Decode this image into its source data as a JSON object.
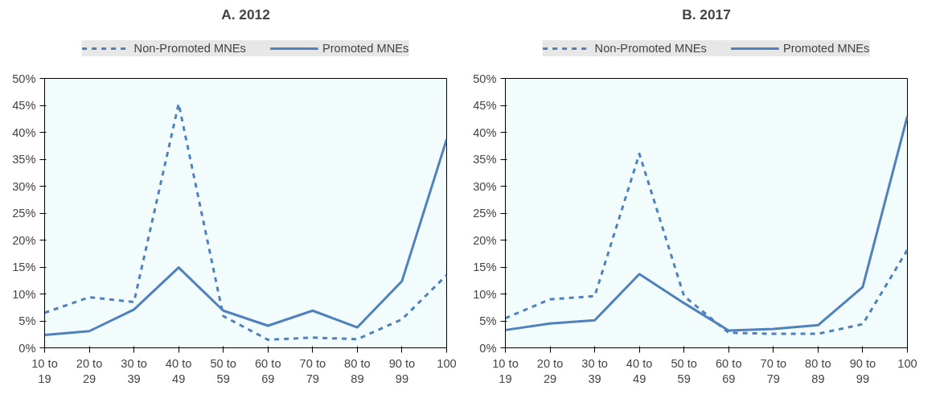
{
  "chart_data": [
    {
      "type": "line",
      "title": "A. 2012",
      "categories": [
        "10 to 19",
        "20 to 29",
        "30 to 39",
        "40 to 49",
        "50 to 59",
        "60 to 69",
        "70 to 79",
        "80 to 89",
        "90 to 99",
        "100"
      ],
      "ylim": [
        0,
        50
      ],
      "yticks": [
        {
          "value": 0,
          "label": "0%"
        },
        {
          "value": 5,
          "label": "5%"
        },
        {
          "value": 10,
          "label": "10%"
        },
        {
          "value": 15,
          "label": "15%"
        },
        {
          "value": 20,
          "label": "20%"
        },
        {
          "value": 25,
          "label": "25%"
        },
        {
          "value": 30,
          "label": "30%"
        },
        {
          "value": 35,
          "label": "35%"
        },
        {
          "value": 40,
          "label": "40%"
        },
        {
          "value": 45,
          "label": "45%"
        },
        {
          "value": 50,
          "label": "50%"
        }
      ],
      "grid": false,
      "legend": "top",
      "marker": "none",
      "series": [
        {
          "name": "Non-Promoted MNEs",
          "color": "#4f81bd",
          "line_style": "dashed",
          "values": [
            6.5,
            9.4,
            8.5,
            45.3,
            5.9,
            1.5,
            1.9,
            1.6,
            5.3,
            13.5
          ]
        },
        {
          "name": "Promoted MNEs",
          "color": "#4f81bd",
          "line_style": "solid",
          "values": [
            2.4,
            3.1,
            7.1,
            14.9,
            6.9,
            4.1,
            6.9,
            3.8,
            12.4,
            38.7
          ]
        }
      ]
    },
    {
      "type": "line",
      "title": "B. 2017",
      "categories": [
        "10 to 19",
        "20 to 29",
        "30 to 39",
        "40 to 49",
        "50 to 59",
        "60 to 69",
        "70 to 79",
        "80 to 89",
        "90 to 99",
        "100"
      ],
      "ylim": [
        0,
        50
      ],
      "yticks": [
        {
          "value": 0,
          "label": "0%"
        },
        {
          "value": 5,
          "label": "5%"
        },
        {
          "value": 10,
          "label": "10%"
        },
        {
          "value": 15,
          "label": "15%"
        },
        {
          "value": 20,
          "label": "20%"
        },
        {
          "value": 25,
          "label": "25%"
        },
        {
          "value": 30,
          "label": "30%"
        },
        {
          "value": 35,
          "label": "35%"
        },
        {
          "value": 40,
          "label": "40%"
        },
        {
          "value": 45,
          "label": "45%"
        },
        {
          "value": 50,
          "label": "50%"
        }
      ],
      "grid": false,
      "legend": "top",
      "marker": "none",
      "series": [
        {
          "name": "Non-Promoted MNEs",
          "color": "#4f81bd",
          "line_style": "dashed",
          "values": [
            5.5,
            9.0,
            9.6,
            36.0,
            9.6,
            2.8,
            2.6,
            2.6,
            4.4,
            18.2
          ]
        },
        {
          "name": "Promoted MNEs",
          "color": "#4f81bd",
          "line_style": "solid",
          "values": [
            3.3,
            4.5,
            5.1,
            13.7,
            8.3,
            3.2,
            3.5,
            4.2,
            11.3,
            43.0
          ]
        }
      ]
    }
  ]
}
